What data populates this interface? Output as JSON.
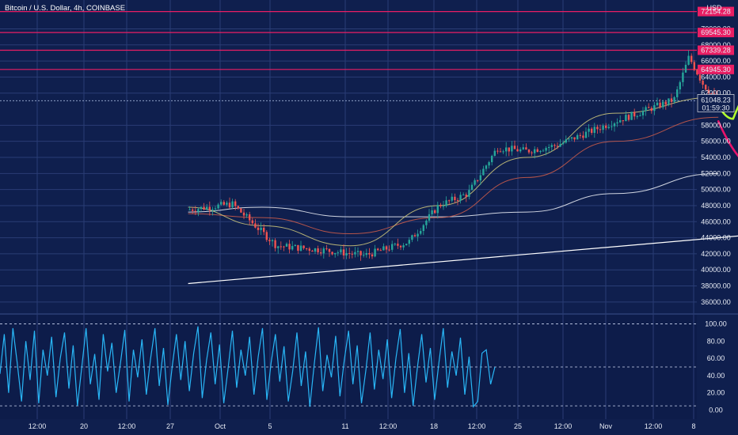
{
  "header": {
    "title": "Bitcoin / U.S. Dollar, 4h, COINBASE",
    "currency": "USD"
  },
  "price_axis": {
    "ticks": [
      "70000.00",
      "68000.00",
      "66000.00",
      "64000.00",
      "62000.00",
      "58000.00",
      "56000.00",
      "54000.00",
      "52000.00",
      "50000.00",
      "48000.00",
      "46000.00",
      "44000.00",
      "42000.00",
      "40000.00",
      "38000.00",
      "36000.00"
    ],
    "labels": [
      {
        "text": "72154.28",
        "value": 72154.28,
        "color": "#e91e63"
      },
      {
        "text": "69545.30",
        "value": 69545.3,
        "color": "#e91e63"
      },
      {
        "text": "67339.28",
        "value": 67339.28,
        "color": "#e91e63"
      },
      {
        "text": "64945.30",
        "value": 64945.3,
        "color": "#e91e63"
      },
      {
        "text": "61048.23",
        "value": 61048.23,
        "color": "#ffffff"
      }
    ],
    "countdown": "01:59:30"
  },
  "time_axis": {
    "ticks": [
      "12:00",
      "20",
      "12:00",
      "27",
      "Oct",
      "5",
      "11",
      "12:00",
      "18",
      "12:00",
      "25",
      "12:00",
      "Nov",
      "12:00",
      "8"
    ]
  },
  "oscillator_axis": {
    "ticks": [
      "100.00",
      "80.00",
      "60.00",
      "40.00",
      "20.00",
      "0.00"
    ]
  },
  "colors": {
    "background": "#0f1f4e",
    "grid": "#2a3d75",
    "up_candle": "#26a69a",
    "down_candle": "#ef5350",
    "resistance": "#e91e63",
    "green_arrow": "#b2ff2e",
    "pink_arrow": "#e8136b",
    "oscillator": "#29b6f6",
    "ma_slow": "#e6e9f2",
    "ma_mid": "#c75a4a",
    "ma_fast": "#c9c27a"
  },
  "chart_data": [
    {
      "type": "candlestick",
      "title": "Bitcoin / U.S. Dollar, 4h, COINBASE",
      "ylabel": "USD",
      "ylim": [
        35000,
        73000
      ],
      "grid": true,
      "series": [
        {
          "kind": "price_ohlc_sampled",
          "x": [
            "Sep 16",
            "Sep 19",
            "Sep 22",
            "Sep 25",
            "Sep 28",
            "Oct 1",
            "Oct 3",
            "Oct 5",
            "Oct 7",
            "Oct 9",
            "Oct 11",
            "Oct 13",
            "Oct 15",
            "Oct 17",
            "Oct 19",
            "Oct 20",
            "Oct 21",
            "Oct 22"
          ],
          "close": [
            47500,
            48200,
            43000,
            42500,
            41800,
            43500,
            48000,
            49500,
            55200,
            54800,
            55500,
            57000,
            58500,
            59800,
            61200,
            66500,
            63000,
            61048.23
          ]
        },
        {
          "kind": "moving_average",
          "color": "#e6e9f2",
          "x": [
            "Sep 16",
            "Sep 21",
            "Sep 27",
            "Oct 3",
            "Oct 9",
            "Oct 15",
            "Oct 22"
          ],
          "values": [
            47200,
            47800,
            46600,
            46600,
            47200,
            49500,
            52000
          ]
        },
        {
          "kind": "moving_average",
          "color": "#c75a4a",
          "x": [
            "Sep 16",
            "Sep 21",
            "Sep 27",
            "Oct 3",
            "Oct 9",
            "Oct 15",
            "Oct 22"
          ],
          "values": [
            47000,
            46500,
            44500,
            46500,
            51500,
            56000,
            59000
          ]
        },
        {
          "kind": "moving_average",
          "color": "#c9c27a",
          "x": [
            "Sep 16",
            "Sep 21",
            "Sep 27",
            "Oct 3",
            "Oct 9",
            "Oct 15",
            "Oct 22"
          ],
          "values": [
            47800,
            45500,
            43000,
            48000,
            54000,
            59500,
            61500
          ]
        },
        {
          "kind": "trendline",
          "color": "#ffffff",
          "x": [
            "Sep 16",
            "Nov 8"
          ],
          "values": [
            38300,
            46700
          ]
        }
      ],
      "horizontal_levels": [
        72154.28,
        69545.3,
        67339.28,
        64945.3
      ],
      "annotations": [
        {
          "kind": "arrow",
          "color": "#b2ff2e",
          "points": [
            {
              "x": "Oct 22",
              "y": 60500
            },
            {
              "x": "Oct 23",
              "y": 58800
            },
            {
              "x": "Oct 25",
              "y": 63500
            },
            {
              "x": "Oct 27",
              "y": 68600
            }
          ]
        },
        {
          "kind": "arrow",
          "color": "#e8136b",
          "points": [
            {
              "x": "Oct 22",
              "y": 58500
            },
            {
              "x": "Oct 25",
              "y": 52300
            },
            {
              "x": "Oct 27",
              "y": 58000
            },
            {
              "x": "Oct 29",
              "y": 62600
            }
          ]
        }
      ]
    },
    {
      "type": "line",
      "title": "",
      "ylim": [
        -5,
        105
      ],
      "grid": true,
      "reference_lines": [
        100,
        50,
        5
      ],
      "series": [
        {
          "values": [
            42,
            88,
            20,
            95,
            55,
            10,
            80,
            35,
            92,
            8,
            70,
            40,
            85,
            15,
            60,
            90,
            25,
            75,
            5,
            50,
            95,
            30,
            65,
            12,
            88,
            45,
            78,
            20,
            55,
            93,
            10,
            70,
            38,
            82,
            18,
            60,
            95,
            28,
            72,
            6,
            50,
            88,
            35,
            80,
            22,
            66,
            97,
            14,
            58,
            90,
            30,
            76,
            8,
            48,
            92,
            26,
            70,
            40,
            85,
            18,
            62,
            95,
            12,
            55,
            88,
            33,
            74,
            10,
            45,
            90,
            28,
            68,
            4,
            52,
            96,
            22,
            64,
            38,
            86,
            16,
            58,
            92,
            30,
            75,
            8,
            46,
            90,
            24,
            70,
            36,
            82,
            14,
            60,
            94,
            20,
            66,
            5,
            50,
            88,
            32,
            72,
            12,
            55,
            95,
            26,
            68,
            40,
            84,
            18,
            62,
            4,
            10,
            66,
            70,
            30,
            50
          ]
        }
      ]
    }
  ]
}
